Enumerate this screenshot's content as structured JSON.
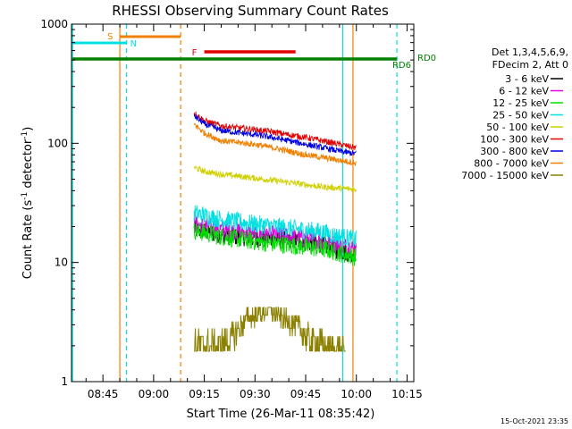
{
  "chart_data": {
    "type": "line",
    "title": "RHESSI Observing Summary Count Rates",
    "xlabel": "Start Time (26-Mar-11 08:35:42)",
    "ylabel": "Count Rate (s⁻¹ detector⁻¹)",
    "ylabel_parts": {
      "a": "Count Rate (s",
      "sup1": "-1",
      "b": " detector",
      "sup2": "-1",
      "c": ")"
    },
    "y_scale": "log",
    "ylim": [
      1,
      1000
    ],
    "xlim": [
      "08:35:42",
      "10:17:00"
    ],
    "x_ticks": [
      "08:45",
      "09:00",
      "09:15",
      "09:30",
      "09:45",
      "10:00",
      "10:15"
    ],
    "y_ticks": [
      "1",
      "10",
      "100",
      "1000"
    ],
    "legend_header": [
      "Det 1,3,4,5,6,9,",
      "FDecim 2, Att 0"
    ],
    "legend_placement": "right",
    "series": [
      {
        "name": "3 - 6 keV",
        "color": "#000000",
        "x": [
          "09:12",
          "09:20",
          "09:30",
          "09:40",
          "09:50",
          "09:55",
          "09:58",
          "10:00"
        ],
        "values": [
          19,
          17,
          16,
          15.5,
          14,
          12.5,
          12,
          12
        ]
      },
      {
        "name": "6 - 12 keV",
        "color": "#e000e0",
        "x": [
          "09:12",
          "09:20",
          "09:30",
          "09:40",
          "09:50",
          "09:55",
          "09:58",
          "10:00"
        ],
        "values": [
          21,
          19,
          17.5,
          16.5,
          15,
          14,
          13.5,
          13
        ]
      },
      {
        "name": "12 - 25 keV",
        "color": "#00e000",
        "x": [
          "09:12",
          "09:20",
          "09:30",
          "09:40",
          "09:50",
          "09:55",
          "09:58",
          "10:00"
        ],
        "values": [
          18.5,
          16.5,
          15,
          14,
          13,
          12,
          11.5,
          11
        ]
      },
      {
        "name": "25 - 50 keV",
        "color": "#00e0e0",
        "x": [
          "09:12",
          "09:20",
          "09:30",
          "09:40",
          "09:50",
          "09:55",
          "09:58",
          "10:00"
        ],
        "values": [
          26,
          23,
          21,
          19.5,
          18,
          16.5,
          16,
          15.5
        ]
      },
      {
        "name": "50 - 100 keV",
        "color": "#d0d000",
        "x": [
          "09:12",
          "09:15",
          "09:20",
          "09:30",
          "09:40",
          "09:45",
          "09:50",
          "09:55",
          "10:00"
        ],
        "values": [
          63,
          58,
          55,
          51,
          47,
          45,
          43,
          42,
          41
        ]
      },
      {
        "name": "100 - 300 keV",
        "color": "#e00000",
        "x": [
          "09:12",
          "09:15",
          "09:20",
          "09:30",
          "09:35",
          "09:40",
          "09:45",
          "09:50",
          "09:55",
          "09:58",
          "10:00"
        ],
        "values": [
          180,
          155,
          140,
          130,
          125,
          118,
          112,
          105,
          98,
          94,
          92
        ]
      },
      {
        "name": "300 - 800 keV",
        "color": "#0000e0",
        "x": [
          "09:12",
          "09:15",
          "09:20",
          "09:30",
          "09:35",
          "09:40",
          "09:45",
          "09:50",
          "09:55",
          "09:58",
          "10:00"
        ],
        "values": [
          170,
          145,
          128,
          118,
          112,
          105,
          98,
          92,
          86,
          83,
          82
        ]
      },
      {
        "name": "800 - 7000 keV",
        "color": "#f08000",
        "x": [
          "09:12",
          "09:15",
          "09:20",
          "09:30",
          "09:35",
          "09:40",
          "09:45",
          "09:50",
          "09:55",
          "09:58",
          "10:00"
        ],
        "values": [
          145,
          122,
          105,
          98,
          92,
          86,
          80,
          76,
          72,
          70,
          68
        ]
      },
      {
        "name": "7000 - 15000 keV",
        "color": "#8b8000",
        "x": [
          "09:12",
          "09:20",
          "09:24",
          "09:28",
          "09:34",
          "09:38",
          "09:42",
          "09:46",
          "09:50",
          "09:54",
          "09:57"
        ],
        "values": [
          2,
          2,
          2.5,
          3.5,
          4,
          3.5,
          3,
          2.3,
          2,
          1.8,
          1.6
        ]
      }
    ],
    "annotations": [
      {
        "label": "S",
        "color": "#f08000",
        "x_start": "08:50",
        "x_end": "09:08"
      },
      {
        "label": "N",
        "color": "#00e0e0",
        "x_start": "08:36",
        "x_end": "08:52"
      },
      {
        "label": "F",
        "color": "#e00000",
        "x_start": "09:15",
        "x_end": "09:42"
      },
      {
        "label": "RD0",
        "color": "#008000",
        "x_start": "09:56",
        "x_end": "10:12"
      },
      {
        "label": "RD6",
        "color": "#008000",
        "x_start": "08:36",
        "x_end": "10:12"
      }
    ],
    "vertical_markers": [
      {
        "time": "08:36",
        "color": "#00e0e0",
        "style": "solid"
      },
      {
        "time": "08:50",
        "color": "#f08000",
        "style": "solid"
      },
      {
        "time": "08:52",
        "color": "#00e0e0",
        "style": "dashed"
      },
      {
        "time": "09:08",
        "color": "#f08000",
        "style": "dashed"
      },
      {
        "time": "09:56",
        "color": "#00e0e0",
        "style": "solid"
      },
      {
        "time": "09:59",
        "color": "#f08000",
        "style": "solid"
      },
      {
        "time": "10:12",
        "color": "#00e0e0",
        "style": "dashed"
      }
    ],
    "grid": false
  },
  "footer_timestamp": "15-Oct-2021 23:35"
}
